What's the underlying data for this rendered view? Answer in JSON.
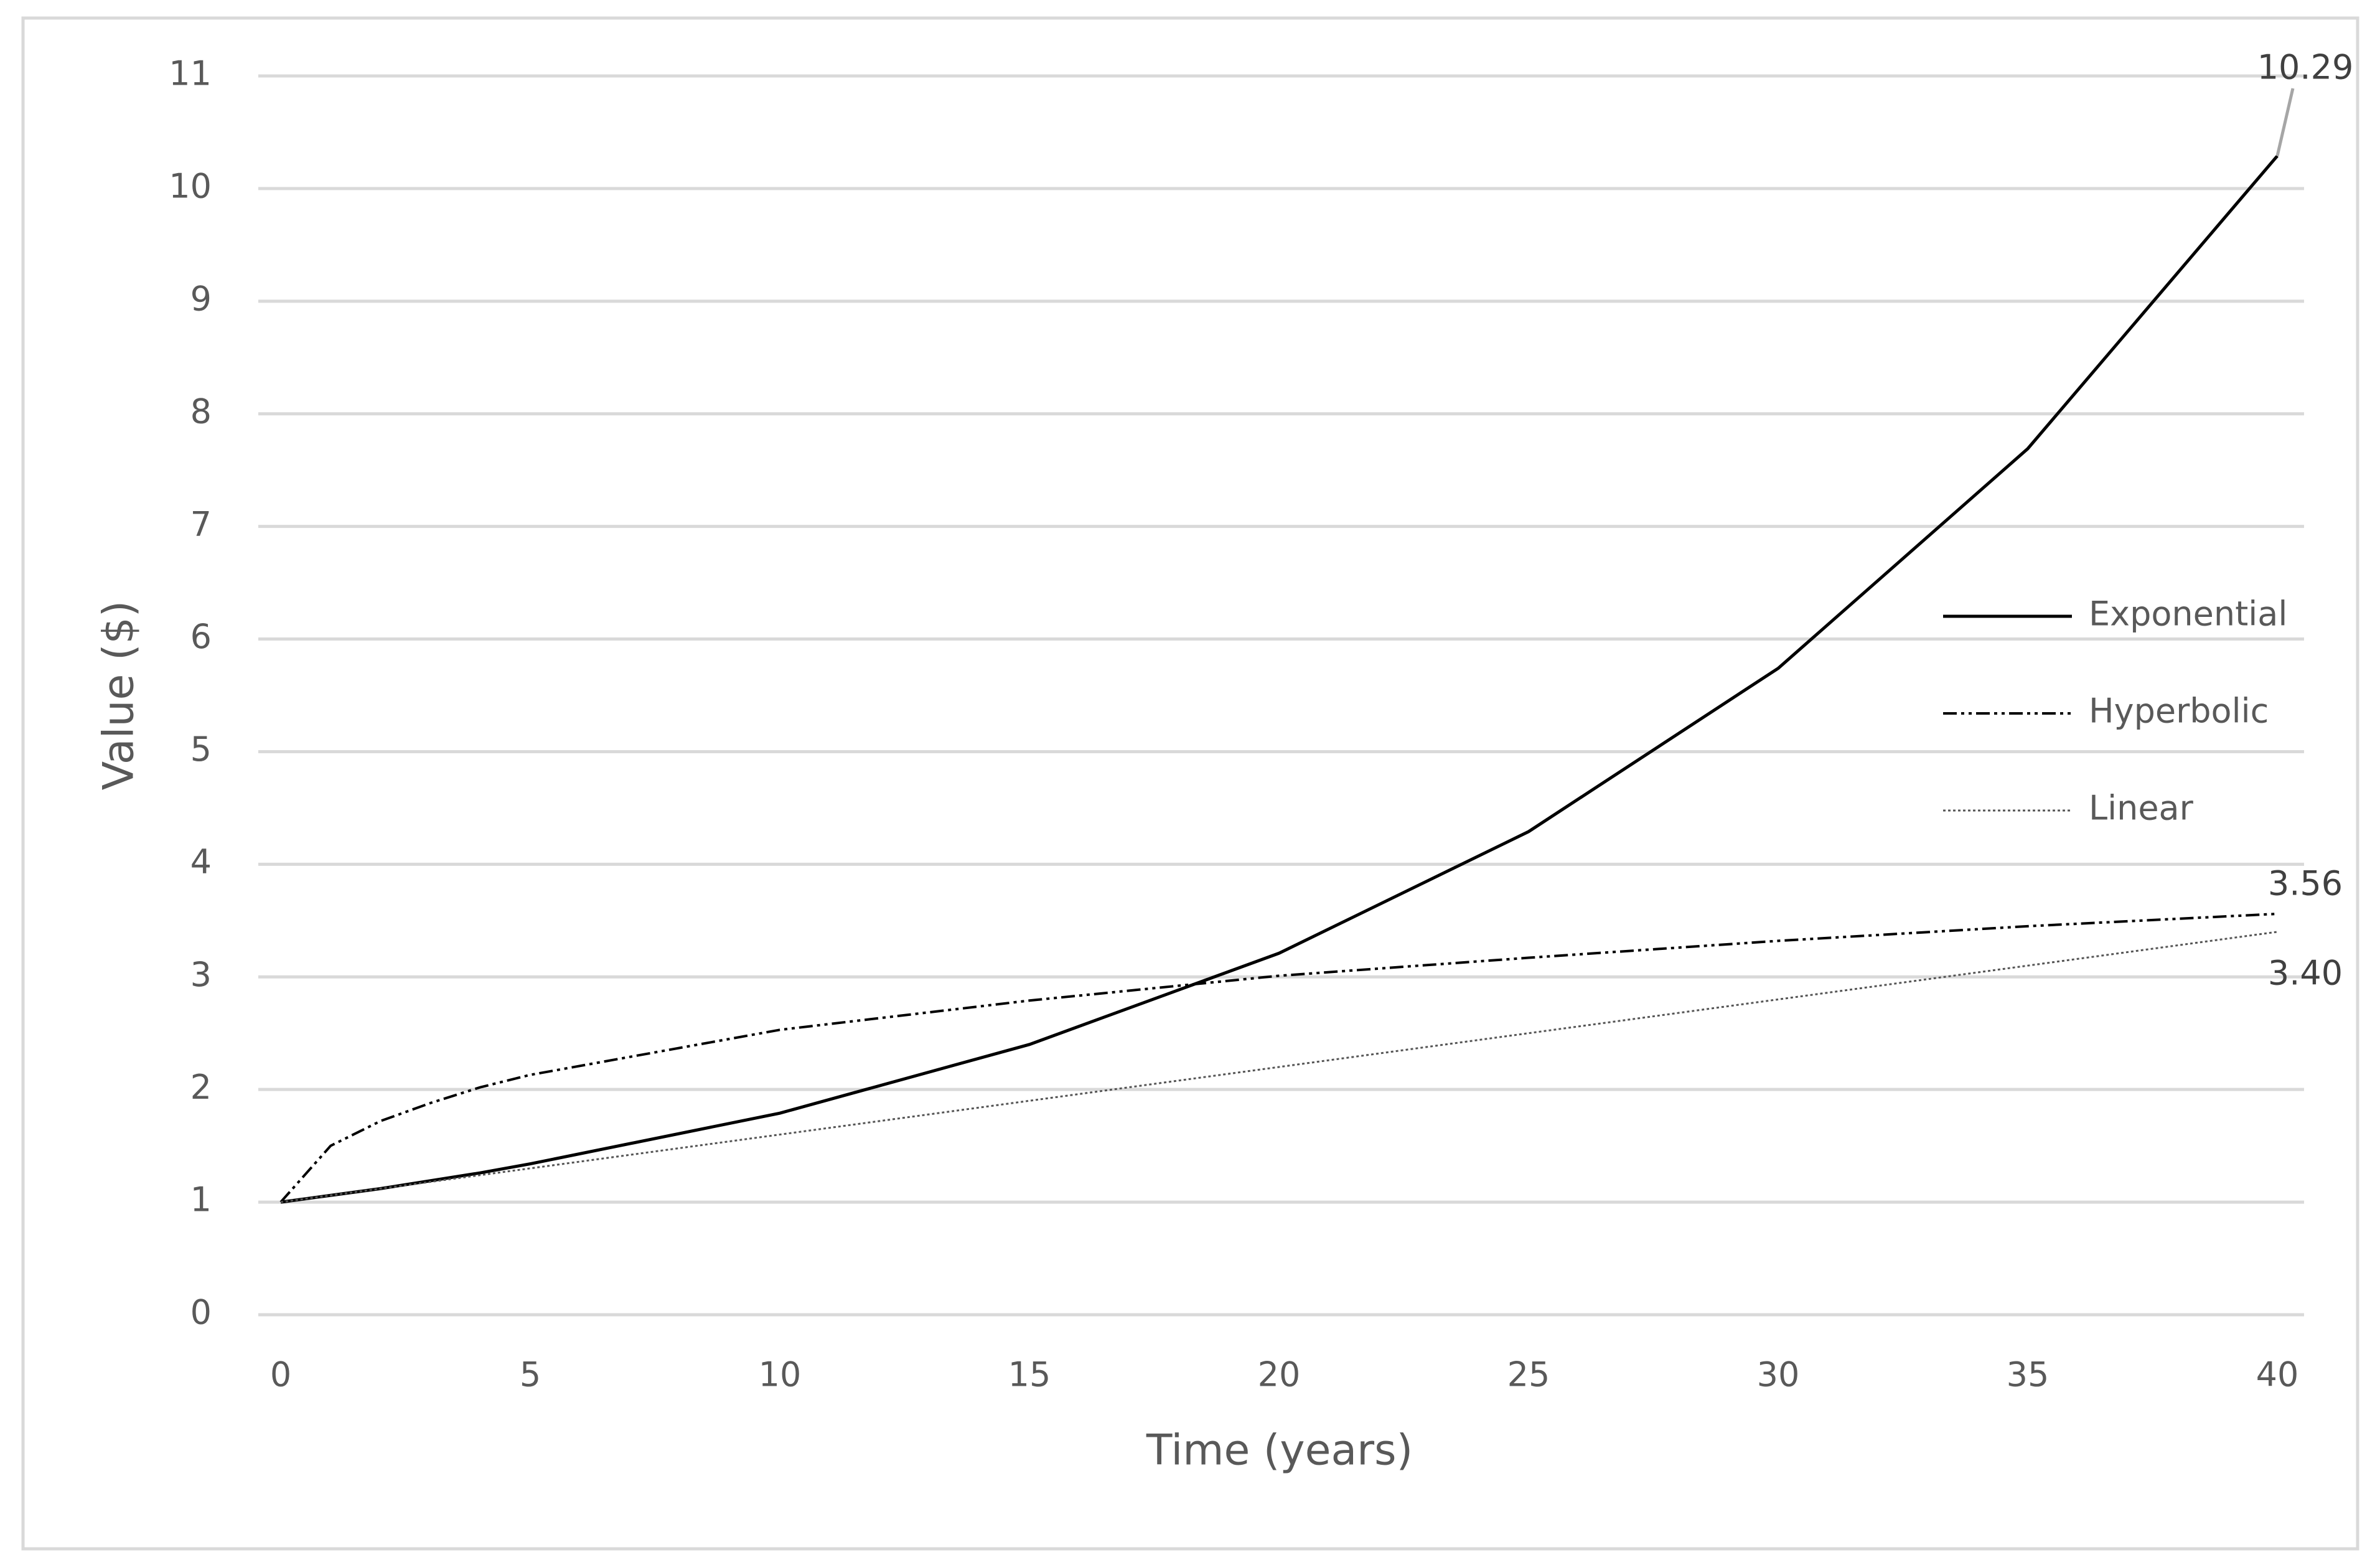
{
  "chart_data": {
    "type": "line",
    "x_label": "Time (years)",
    "y_label": "Value ($)",
    "x": [
      0,
      1,
      2,
      3,
      4,
      5,
      10,
      15,
      20,
      25,
      30,
      35,
      40
    ],
    "series": [
      {
        "name": "Exponential",
        "color": "#000000",
        "dash": "solid",
        "values": [
          1,
          1.06,
          1.12,
          1.19,
          1.26,
          1.34,
          1.79,
          2.4,
          3.21,
          4.29,
          5.74,
          7.69,
          10.29
        ],
        "value_labels": [
          null,
          null,
          null,
          null,
          null,
          null,
          null,
          null,
          null,
          null,
          null,
          null,
          "10.29"
        ]
      },
      {
        "name": "Hyperbolic",
        "color": "#000000",
        "dash": "dashdotdot",
        "values": [
          1,
          1.5,
          1.72,
          1.88,
          2.02,
          2.13,
          2.53,
          2.79,
          3.01,
          3.17,
          3.32,
          3.45,
          3.56
        ],
        "value_labels": [
          null,
          null,
          null,
          null,
          null,
          null,
          null,
          null,
          null,
          null,
          null,
          null,
          "3.56"
        ]
      },
      {
        "name": "Linear",
        "color": "#555555",
        "dash": "dotted",
        "values": [
          1,
          1.06,
          1.12,
          1.18,
          1.24,
          1.3,
          1.6,
          1.9,
          2.2,
          2.5,
          2.8,
          3.1,
          3.4
        ],
        "value_labels": [
          null,
          null,
          null,
          null,
          null,
          null,
          null,
          null,
          null,
          null,
          null,
          null,
          "3.40"
        ]
      }
    ],
    "xlim": [
      0,
      40
    ],
    "xticks": [
      0,
      5,
      10,
      15,
      20,
      25,
      30,
      35,
      40
    ],
    "ylim": [
      0,
      11
    ],
    "yticks": [
      0,
      1,
      2,
      3,
      4,
      5,
      6,
      7,
      8,
      9,
      10,
      11
    ],
    "grid": true,
    "legend": "right"
  }
}
